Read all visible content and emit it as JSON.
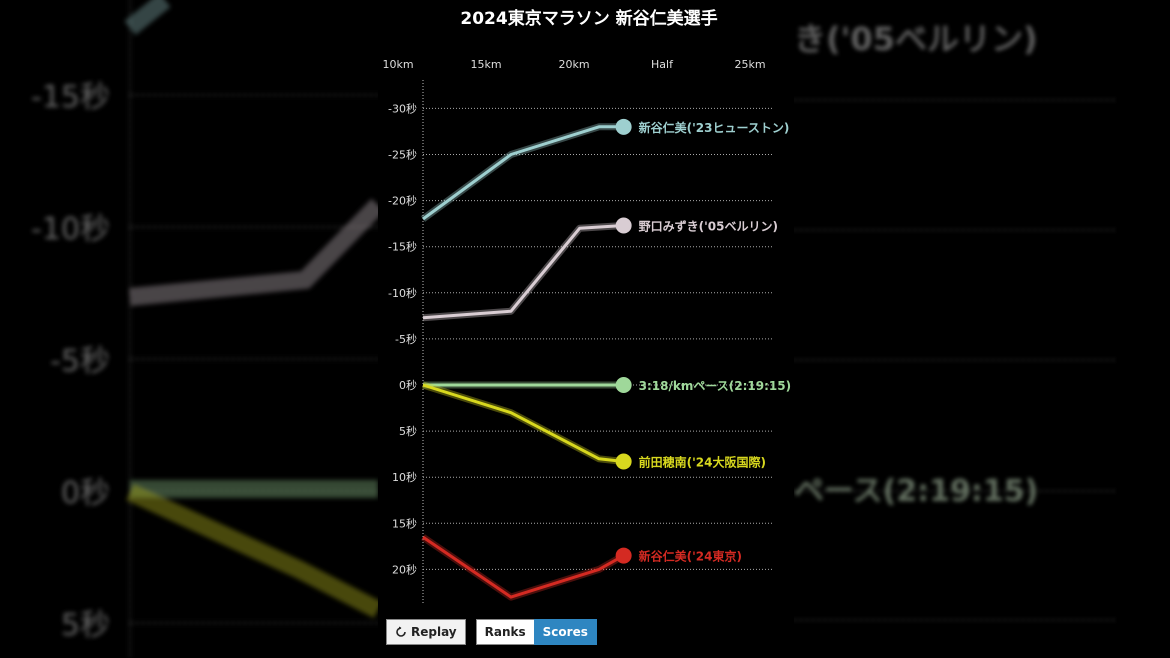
{
  "title": "2024東京マラソン 新谷仁美選手",
  "controls": {
    "replay_icon": "replay-icon",
    "replay_label": "Replay",
    "ranks_label": "Ranks",
    "scores_label": "Scores",
    "active_toggle": "Scores"
  },
  "background_echo": {
    "y_labels": [
      "-15秒",
      "-10秒",
      "-5秒",
      "0秒",
      "5秒"
    ],
    "y_values": [
      -15,
      -10,
      -5,
      0,
      5
    ],
    "right_texts": [
      "き('05ベルリン)",
      "ペース(2:19:15)"
    ]
  },
  "chart_data": {
    "type": "line",
    "title": "2024東京マラソン 新谷仁美選手",
    "x_categories": [
      "10km",
      "15km",
      "20km",
      "Half",
      "25km"
    ],
    "y_ticks": [
      -30,
      -25,
      -20,
      -15,
      -10,
      -5,
      0,
      5,
      10,
      15,
      20
    ],
    "y_tick_labels": [
      "-30秒",
      "-25秒",
      "-20秒",
      "-15秒",
      "-10秒",
      "-5秒",
      "0秒",
      "5秒",
      "10秒",
      "15秒",
      "20秒"
    ],
    "ylim": [
      -31,
      24
    ],
    "y_inverted": true,
    "grid": "horizontal dotted",
    "series": [
      {
        "name": "新谷仁美('23ヒューストン)",
        "color": "#9ecfcf",
        "x": [
          0,
          1,
          2,
          2.28
        ],
        "y": [
          -18,
          -25,
          -28,
          -28
        ]
      },
      {
        "name": "野口みずき('05ベルリン)",
        "color": "#d9cdd3",
        "x": [
          0,
          1,
          1.78,
          2.28
        ],
        "y": [
          -7.3,
          -8,
          -17,
          -17.3
        ]
      },
      {
        "name": "3:18/kmペース(2:19:15)",
        "color": "#9fd89a",
        "x": [
          0,
          2.28
        ],
        "y": [
          0,
          0
        ]
      },
      {
        "name": "前田穂南('24大阪国際)",
        "color": "#d8d81e",
        "x": [
          0,
          1,
          2,
          2.28
        ],
        "y": [
          0,
          3,
          8,
          8.3
        ]
      },
      {
        "name": "新谷仁美('24東京)",
        "color": "#d42a22",
        "x": [
          0,
          1,
          2,
          2.28
        ],
        "y": [
          16.5,
          23,
          20,
          18.5
        ]
      }
    ]
  }
}
